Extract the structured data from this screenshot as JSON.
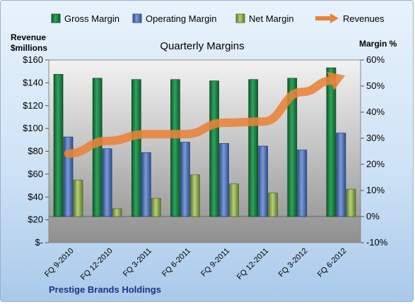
{
  "chart_data": {
    "type": "bar",
    "title": "Quarterly Margins",
    "categories": [
      "FQ 9-2010",
      "FQ 12-2010",
      "FQ 3-2011",
      "FQ 6-2011",
      "FQ 9-2011",
      "FQ 12-2011",
      "FQ 3-2012",
      "FQ 6-2012"
    ],
    "left_axis": {
      "label_line1": "Revenue",
      "label_line2": "$millions",
      "ylim": [
        0,
        160
      ],
      "ticks": [
        0,
        20,
        40,
        60,
        80,
        100,
        120,
        140,
        160
      ],
      "tick_labels": [
        "$-",
        "$20",
        "$40",
        "$60",
        "$80",
        "$100",
        "$120",
        "$140",
        "$160"
      ]
    },
    "right_axis": {
      "label": "Margin %",
      "ylim": [
        -10,
        60
      ],
      "ticks": [
        -10,
        0,
        10,
        20,
        30,
        40,
        50,
        60
      ],
      "tick_labels": [
        "-10%",
        "0%",
        "10%",
        "20%",
        "30%",
        "40%",
        "50%",
        "60%"
      ]
    },
    "series": [
      {
        "name": "Gross Margin",
        "axis": "right",
        "kind": "bar",
        "color": "#1e8a4a",
        "values": [
          54.5,
          53.0,
          52.5,
          52.5,
          52.0,
          52.5,
          53.0,
          57.0
        ]
      },
      {
        "name": "Operating Margin",
        "axis": "right",
        "kind": "bar",
        "color": "#4f73b8",
        "values": [
          30.5,
          26.0,
          24.5,
          28.5,
          28.0,
          27.0,
          25.5,
          32.0
        ]
      },
      {
        "name": "Net Margin",
        "axis": "right",
        "kind": "bar",
        "color": "#8fb04e",
        "values": [
          14.0,
          3.0,
          7.0,
          16.0,
          12.5,
          9.0,
          0.0,
          10.5
        ]
      },
      {
        "name": "Revenues",
        "axis": "left",
        "kind": "line",
        "color": "#e8833a",
        "values": [
          78,
          89,
          95,
          95,
          105,
          106,
          132,
          145
        ]
      }
    ],
    "grid": false,
    "legend_position": "top"
  },
  "footer": {
    "company": "Prestige Brands Holdings"
  }
}
